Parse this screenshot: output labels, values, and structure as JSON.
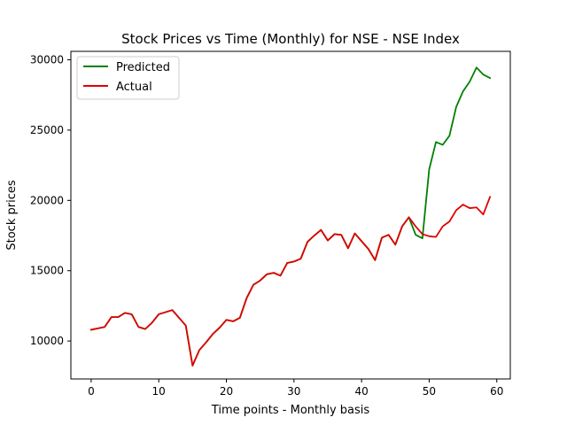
{
  "chart_data": {
    "type": "line",
    "title": "Stock Prices vs Time (Monthly) for NSE - NSE Index",
    "xlabel": "Time points - Monthly basis",
    "ylabel": "Stock prices",
    "xlim": [
      -3,
      62
    ],
    "ylim": [
      7300,
      30600
    ],
    "xticks": [
      0,
      10,
      20,
      30,
      40,
      50,
      60
    ],
    "yticks": [
      10000,
      15000,
      20000,
      25000,
      30000
    ],
    "grid": false,
    "legend_position": "top-left",
    "x": [
      0,
      1,
      2,
      3,
      4,
      5,
      6,
      7,
      8,
      9,
      10,
      11,
      12,
      13,
      14,
      15,
      16,
      17,
      18,
      19,
      20,
      21,
      22,
      23,
      24,
      25,
      26,
      27,
      28,
      29,
      30,
      31,
      32,
      33,
      34,
      35,
      36,
      37,
      38,
      39,
      40,
      41,
      42,
      43,
      44,
      45,
      46,
      47,
      48,
      49,
      50,
      51,
      52,
      53,
      54,
      55,
      56,
      57,
      58,
      59
    ],
    "series": [
      {
        "name": "Predicted",
        "color": "#008000",
        "values": [
          10800,
          10900,
          11000,
          11700,
          11700,
          12000,
          11900,
          11000,
          10850,
          11300,
          11900,
          12050,
          12200,
          11650,
          11100,
          8250,
          9350,
          9900,
          10500,
          10950,
          11500,
          11400,
          11650,
          13050,
          14000,
          14300,
          14750,
          14850,
          14650,
          15550,
          15650,
          15850,
          17050,
          17500,
          17900,
          17150,
          17600,
          17550,
          16600,
          17650,
          17100,
          16550,
          15750,
          17350,
          17550,
          16850,
          18150,
          18800,
          17550,
          17300,
          22200,
          24150,
          23950,
          24600,
          26650,
          27750,
          28450,
          29450,
          28950,
          28700
        ]
      },
      {
        "name": "Actual",
        "color": "#e00000",
        "values": [
          10800,
          10900,
          11000,
          11700,
          11700,
          12000,
          11900,
          11000,
          10850,
          11300,
          11900,
          12050,
          12200,
          11650,
          11100,
          8250,
          9350,
          9900,
          10500,
          10950,
          11500,
          11400,
          11650,
          13050,
          14000,
          14300,
          14750,
          14850,
          14650,
          15550,
          15650,
          15850,
          17050,
          17500,
          17900,
          17150,
          17600,
          17550,
          16600,
          17650,
          17100,
          16550,
          15750,
          17350,
          17550,
          16850,
          18150,
          18800,
          18150,
          17600,
          17450,
          17400,
          18150,
          18500,
          19300,
          19700,
          19450,
          19500,
          19000,
          20250
        ]
      }
    ]
  }
}
